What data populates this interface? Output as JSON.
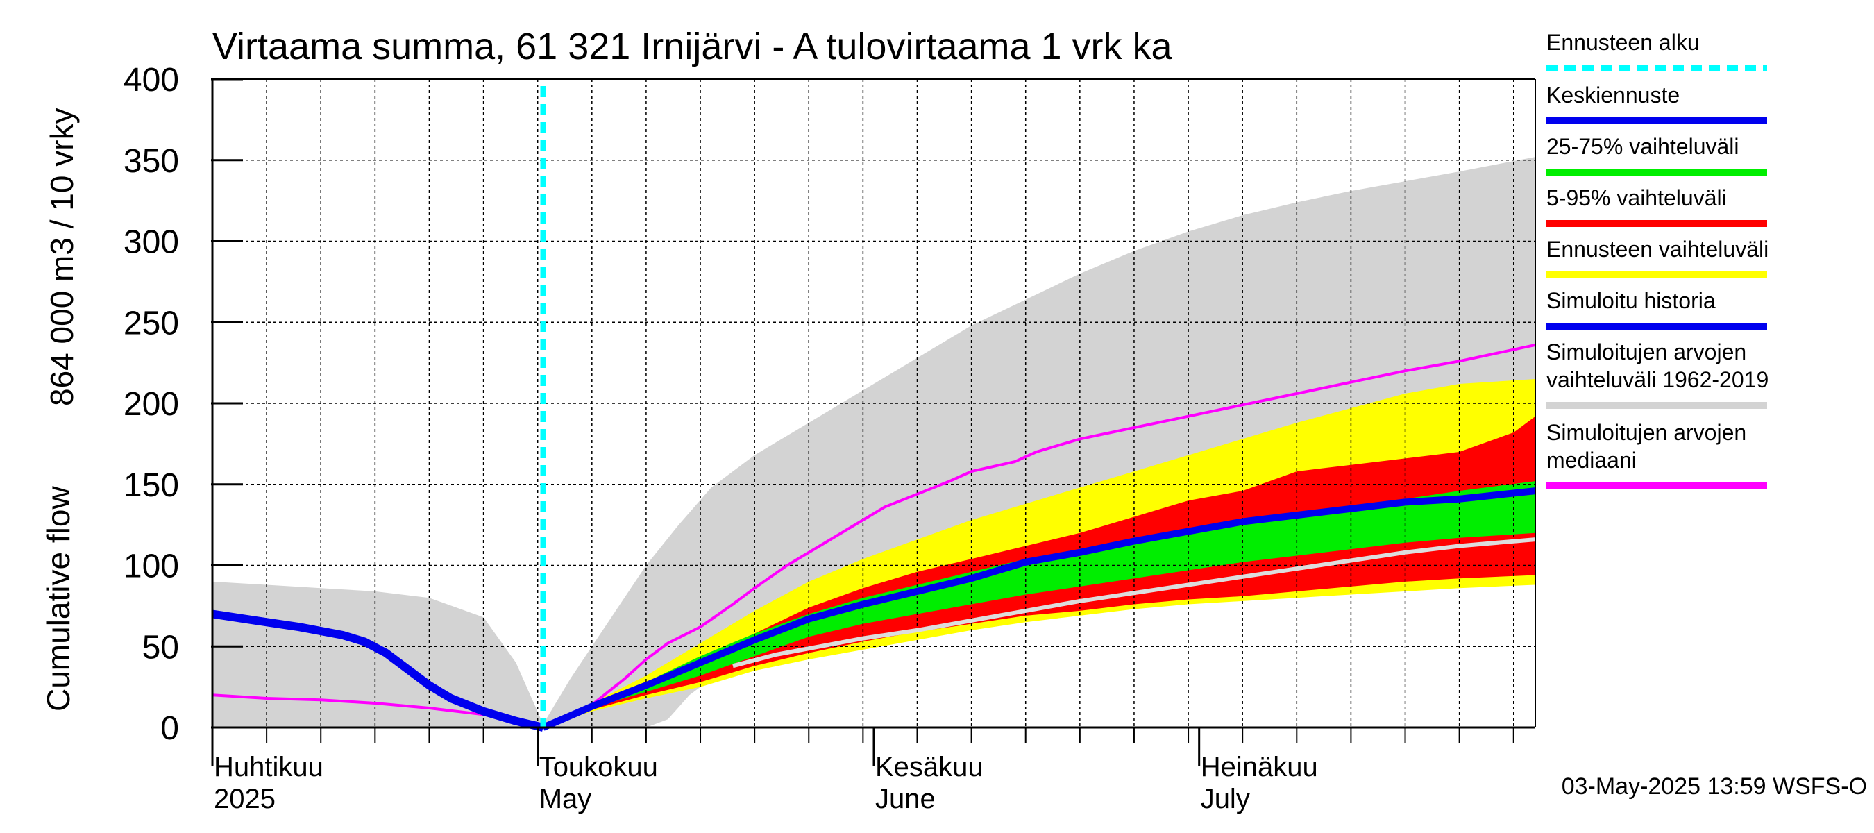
{
  "chart_data": {
    "type": "area",
    "title": "Virtaama summa, 61 321 Irnijärvi - A tulovirtaama 1 vrk ka",
    "ylabel_primary": "864 000 m3 / 10 vrky",
    "ylabel_secondary": "Cumulative flow",
    "ylim": [
      0,
      400
    ],
    "xlim": [
      0,
      122
    ],
    "grid": true,
    "legend_position": "right",
    "y_ticks": [
      0,
      50,
      100,
      150,
      200,
      250,
      300,
      350,
      400
    ],
    "x_month_labels": [
      {
        "x": 0,
        "fi": "Huhtikuu",
        "en": "2025"
      },
      {
        "x": 30,
        "fi": "Toukokuu",
        "en": "May"
      },
      {
        "x": 61,
        "fi": "Kesäkuu",
        "en": "June"
      },
      {
        "x": 91,
        "fi": "Heinäkuu",
        "en": "July"
      }
    ],
    "forecast_start_x": 30.5,
    "series": {
      "historical_range": {
        "name": "Simuloitujen arvojen vaihteluväli 1962-2019",
        "color": "#d3d3d3",
        "upper": [
          [
            0,
            90
          ],
          [
            5,
            88
          ],
          [
            10,
            86
          ],
          [
            15,
            84
          ],
          [
            20,
            80
          ],
          [
            25,
            68
          ],
          [
            28,
            40
          ],
          [
            30.5,
            2
          ],
          [
            33,
            30
          ],
          [
            35,
            50
          ],
          [
            37,
            70
          ],
          [
            40,
            100
          ],
          [
            43,
            125
          ],
          [
            46,
            148
          ],
          [
            50,
            168
          ],
          [
            55,
            188
          ],
          [
            60,
            208
          ],
          [
            65,
            228
          ],
          [
            70,
            248
          ],
          [
            75,
            264
          ],
          [
            80,
            280
          ],
          [
            85,
            294
          ],
          [
            90,
            306
          ],
          [
            95,
            316
          ],
          [
            100,
            324
          ],
          [
            105,
            331
          ],
          [
            110,
            337
          ],
          [
            115,
            343
          ],
          [
            122,
            352
          ]
        ],
        "lower": [
          [
            0,
            0
          ],
          [
            25,
            0
          ],
          [
            30.5,
            0
          ],
          [
            40,
            0
          ],
          [
            42,
            5
          ],
          [
            44,
            20
          ],
          [
            46,
            30
          ],
          [
            50,
            40
          ],
          [
            55,
            46
          ],
          [
            60,
            52
          ],
          [
            65,
            58
          ],
          [
            70,
            64
          ],
          [
            75,
            68
          ],
          [
            80,
            72
          ],
          [
            85,
            75
          ],
          [
            90,
            78
          ],
          [
            95,
            80
          ],
          [
            100,
            82
          ],
          [
            105,
            84
          ],
          [
            110,
            86
          ],
          [
            115,
            88
          ],
          [
            122,
            90
          ]
        ]
      },
      "forecast_range": {
        "name": "Ennusteen vaihteluväli",
        "color": "#ffff00",
        "upper": [
          [
            30.5,
            0
          ],
          [
            35,
            15
          ],
          [
            40,
            32
          ],
          [
            45,
            52
          ],
          [
            50,
            72
          ],
          [
            55,
            90
          ],
          [
            60,
            104
          ],
          [
            65,
            116
          ],
          [
            70,
            128
          ],
          [
            75,
            138
          ],
          [
            80,
            148
          ],
          [
            85,
            158
          ],
          [
            90,
            168
          ],
          [
            95,
            178
          ],
          [
            100,
            188
          ],
          [
            105,
            197
          ],
          [
            110,
            206
          ],
          [
            115,
            212
          ],
          [
            122,
            215
          ]
        ],
        "lower": [
          [
            30.5,
            0
          ],
          [
            35,
            10
          ],
          [
            40,
            18
          ],
          [
            45,
            25
          ],
          [
            50,
            35
          ],
          [
            55,
            42
          ],
          [
            60,
            48
          ],
          [
            65,
            54
          ],
          [
            70,
            60
          ],
          [
            75,
            65
          ],
          [
            80,
            69
          ],
          [
            85,
            73
          ],
          [
            90,
            76
          ],
          [
            95,
            78
          ],
          [
            100,
            80
          ],
          [
            105,
            82
          ],
          [
            110,
            84
          ],
          [
            115,
            86
          ],
          [
            122,
            88
          ]
        ]
      },
      "p5_95": {
        "name": "5-95% vaihteluväli",
        "color": "#ff0000",
        "upper": [
          [
            30.5,
            0
          ],
          [
            35,
            13
          ],
          [
            40,
            26
          ],
          [
            45,
            42
          ],
          [
            50,
            58
          ],
          [
            55,
            74
          ],
          [
            60,
            86
          ],
          [
            65,
            96
          ],
          [
            70,
            104
          ],
          [
            75,
            112
          ],
          [
            80,
            120
          ],
          [
            85,
            130
          ],
          [
            90,
            140
          ],
          [
            95,
            146
          ],
          [
            100,
            158
          ],
          [
            105,
            162
          ],
          [
            110,
            166
          ],
          [
            115,
            170
          ],
          [
            120,
            182
          ],
          [
            122,
            192
          ]
        ],
        "lower": [
          [
            30.5,
            0
          ],
          [
            35,
            11
          ],
          [
            40,
            20
          ],
          [
            45,
            28
          ],
          [
            50,
            38
          ],
          [
            55,
            46
          ],
          [
            60,
            53
          ],
          [
            65,
            59
          ],
          [
            70,
            64
          ],
          [
            75,
            69
          ],
          [
            80,
            72
          ],
          [
            85,
            76
          ],
          [
            90,
            79
          ],
          [
            95,
            81
          ],
          [
            100,
            84
          ],
          [
            105,
            87
          ],
          [
            110,
            90
          ],
          [
            115,
            92
          ],
          [
            122,
            94
          ]
        ]
      },
      "p25_75": {
        "name": "25-75% vaihteluväli",
        "color": "#00ee00",
        "upper": [
          [
            30.5,
            0
          ],
          [
            35,
            14
          ],
          [
            40,
            28
          ],
          [
            45,
            44
          ],
          [
            50,
            58
          ],
          [
            55,
            70
          ],
          [
            60,
            80
          ],
          [
            65,
            88
          ],
          [
            70,
            96
          ],
          [
            75,
            104
          ],
          [
            80,
            110
          ],
          [
            85,
            116
          ],
          [
            90,
            122
          ],
          [
            95,
            127
          ],
          [
            100,
            132
          ],
          [
            105,
            137
          ],
          [
            110,
            141
          ],
          [
            115,
            146
          ],
          [
            122,
            152
          ]
        ],
        "lower": [
          [
            30.5,
            0
          ],
          [
            35,
            12
          ],
          [
            40,
            22
          ],
          [
            45,
            32
          ],
          [
            50,
            44
          ],
          [
            55,
            56
          ],
          [
            60,
            64
          ],
          [
            65,
            70
          ],
          [
            70,
            76
          ],
          [
            75,
            82
          ],
          [
            80,
            87
          ],
          [
            85,
            92
          ],
          [
            90,
            97
          ],
          [
            95,
            102
          ],
          [
            100,
            106
          ],
          [
            105,
            110
          ],
          [
            110,
            114
          ],
          [
            115,
            117
          ],
          [
            122,
            120
          ]
        ]
      },
      "mean_forecast": {
        "name": "Keskiennuste",
        "color": "#0000ee",
        "points": [
          [
            30.5,
            0
          ],
          [
            35,
            13
          ],
          [
            40,
            26
          ],
          [
            45,
            40
          ],
          [
            50,
            54
          ],
          [
            55,
            67
          ],
          [
            60,
            76
          ],
          [
            65,
            84
          ],
          [
            70,
            92
          ],
          [
            75,
            102
          ],
          [
            80,
            108
          ],
          [
            85,
            115
          ],
          [
            90,
            121
          ],
          [
            95,
            127
          ],
          [
            100,
            131
          ],
          [
            105,
            135
          ],
          [
            110,
            139
          ],
          [
            115,
            141
          ],
          [
            122,
            146
          ]
        ]
      },
      "simulated_history": {
        "name": "Simuloitu historia",
        "color": "#0000ee",
        "points": [
          [
            0,
            70
          ],
          [
            4,
            66
          ],
          [
            8,
            62
          ],
          [
            12,
            57
          ],
          [
            14,
            53
          ],
          [
            16,
            46
          ],
          [
            18,
            36
          ],
          [
            20,
            26
          ],
          [
            22,
            18
          ],
          [
            25,
            10
          ],
          [
            28,
            4
          ],
          [
            30.5,
            0
          ]
        ]
      },
      "median": {
        "name": "Simuloitujen arvojen mediaani",
        "color": "#ff00ff",
        "points": [
          [
            0,
            20
          ],
          [
            5,
            18
          ],
          [
            10,
            17
          ],
          [
            15,
            15
          ],
          [
            20,
            12
          ],
          [
            25,
            8
          ],
          [
            28,
            4
          ],
          [
            30.5,
            0
          ],
          [
            35,
            14
          ],
          [
            38,
            30
          ],
          [
            40,
            42
          ],
          [
            42,
            52
          ],
          [
            45,
            62
          ],
          [
            48,
            76
          ],
          [
            50,
            86
          ],
          [
            53,
            100
          ],
          [
            56,
            112
          ],
          [
            58,
            120
          ],
          [
            60,
            128
          ],
          [
            62,
            136
          ],
          [
            65,
            144
          ],
          [
            68,
            152
          ],
          [
            70,
            158
          ],
          [
            74,
            164
          ],
          [
            76,
            170
          ],
          [
            80,
            178
          ],
          [
            85,
            185
          ],
          [
            90,
            192
          ],
          [
            95,
            199
          ],
          [
            100,
            206
          ],
          [
            105,
            213
          ],
          [
            110,
            220
          ],
          [
            115,
            226
          ],
          [
            122,
            236
          ]
        ]
      },
      "secondary_median": {
        "name": "",
        "color": "#dddddd",
        "points": [
          [
            48,
            38
          ],
          [
            52,
            45
          ],
          [
            56,
            50
          ],
          [
            60,
            55
          ],
          [
            65,
            60
          ],
          [
            70,
            66
          ],
          [
            75,
            72
          ],
          [
            80,
            78
          ],
          [
            85,
            83
          ],
          [
            90,
            88
          ],
          [
            95,
            93
          ],
          [
            100,
            98
          ],
          [
            105,
            103
          ],
          [
            110,
            108
          ],
          [
            115,
            112
          ],
          [
            122,
            116
          ]
        ]
      }
    },
    "legend": [
      {
        "label": "Ennusteen alku",
        "color": "#00ffff",
        "style": "dashed"
      },
      {
        "label": "Keskiennuste",
        "color": "#0000ee",
        "style": "solid"
      },
      {
        "label": "25-75% vaihteluväli",
        "color": "#00ee00",
        "style": "solid"
      },
      {
        "label": "5-95% vaihteluväli",
        "color": "#ff0000",
        "style": "solid"
      },
      {
        "label": "Ennusteen vaihteluväli",
        "color": "#ffff00",
        "style": "solid"
      },
      {
        "label": "Simuloitu historia",
        "color": "#0000ee",
        "style": "solid"
      },
      {
        "label": "Simuloitujen arvojen vaihteluväli 1962-2019",
        "color": "#d3d3d3",
        "style": "solid"
      },
      {
        "label": "Simuloitujen arvojen mediaani",
        "color": "#ff00ff",
        "style": "solid"
      }
    ],
    "footer": "03-May-2025 13:59 WSFS-O"
  }
}
